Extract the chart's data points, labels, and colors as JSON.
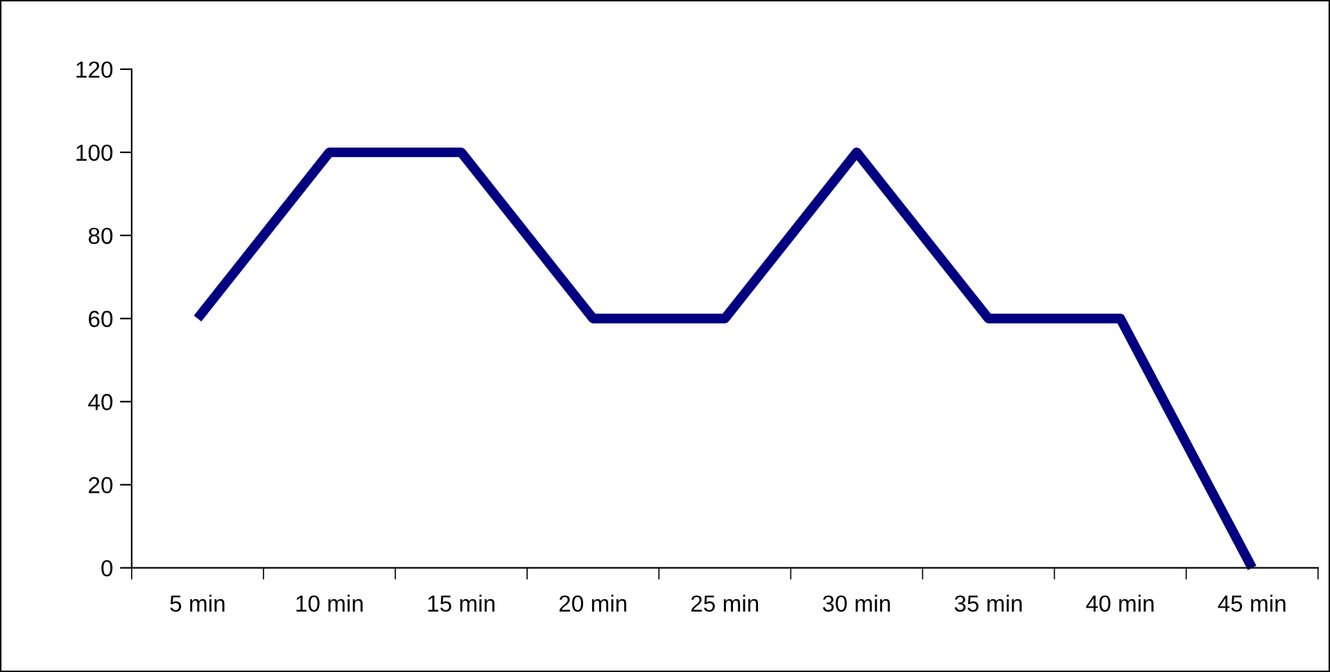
{
  "chart_data": {
    "type": "line",
    "categories": [
      "5 min",
      "10 min",
      "15 min",
      "20 min",
      "25 min",
      "30 min",
      "35 min",
      "40 min",
      "45 min"
    ],
    "series": [
      {
        "color": "#000080",
        "values": [
          60,
          100,
          100,
          60,
          60,
          100,
          60,
          60,
          0
        ]
      }
    ],
    "ylim": [
      0,
      120
    ],
    "yticks": [
      0,
      20,
      40,
      60,
      80,
      100,
      120
    ],
    "grid": false,
    "legend": false,
    "marker": "none",
    "line_style": "solid"
  }
}
